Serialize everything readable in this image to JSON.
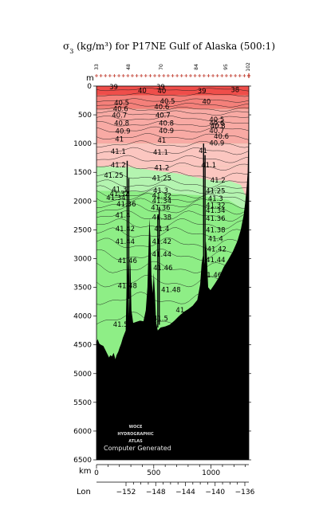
{
  "chart_data": {
    "type": "contour-section",
    "title_symbol": "σ",
    "title_sub": "3",
    "title_rest": " (kg/m³) for P17NE Gulf of Alaska (500:1)",
    "y_unit": "m",
    "x_unit": "km",
    "lon_label": "Lon",
    "ylim": [
      0,
      6500
    ],
    "xlim": [
      0,
      1330
    ],
    "y_ticks": [
      "0",
      "500",
      "1000",
      "1500",
      "2000",
      "2500",
      "3000",
      "3500",
      "4000",
      "4500",
      "5000",
      "5500",
      "6000",
      "6500"
    ],
    "x_ticks": [
      "0",
      "500",
      "1000"
    ],
    "lon_ticks": [
      "−152",
      "−148",
      "−144",
      "−140",
      "−136"
    ],
    "station_numbers": [
      "33",
      "48",
      "70",
      "84",
      "95",
      "102"
    ],
    "fill_colors": {
      "red_dark": "#ef4e4a",
      "red_mid": "#f4807a",
      "red_light": "#f8aaa4",
      "pink": "#fbc6c0",
      "green_light": "#b4f4b0",
      "green": "#8eee86",
      "bottom": "#000000"
    },
    "contour_labels": [
      {
        "text": "39",
        "x": 150,
        "y": 20
      },
      {
        "text": "40",
        "x": 400,
        "y": 80
      },
      {
        "text": "39",
        "x": 560,
        "y": 20
      },
      {
        "text": "40",
        "x": 570,
        "y": 90
      },
      {
        "text": "39",
        "x": 920,
        "y": 90
      },
      {
        "text": "40",
        "x": 960,
        "y": 280
      },
      {
        "text": "38",
        "x": 1210,
        "y": 70
      },
      {
        "text": "40.5",
        "x": 220,
        "y": 300
      },
      {
        "text": "40.5",
        "x": 620,
        "y": 270
      },
      {
        "text": "40.6",
        "x": 210,
        "y": 400
      },
      {
        "text": "40.6",
        "x": 570,
        "y": 370
      },
      {
        "text": "40.7",
        "x": 200,
        "y": 510
      },
      {
        "text": "40.7",
        "x": 580,
        "y": 510
      },
      {
        "text": "40.8",
        "x": 220,
        "y": 650
      },
      {
        "text": "40.8",
        "x": 610,
        "y": 650
      },
      {
        "text": "40.9",
        "x": 230,
        "y": 790
      },
      {
        "text": "40.9",
        "x": 610,
        "y": 780
      },
      {
        "text": "41",
        "x": 200,
        "y": 930
      },
      {
        "text": "41",
        "x": 570,
        "y": 950
      },
      {
        "text": "40.5",
        "x": 1050,
        "y": 590
      },
      {
        "text": "40.6",
        "x": 1050,
        "y": 650
      },
      {
        "text": "40.8",
        "x": 1060,
        "y": 700
      },
      {
        "text": "40.7",
        "x": 1050,
        "y": 780
      },
      {
        "text": "40.6",
        "x": 1090,
        "y": 880
      },
      {
        "text": "40.9",
        "x": 1050,
        "y": 1000
      },
      {
        "text": "41",
        "x": 930,
        "y": 1130
      },
      {
        "text": "41.1",
        "x": 190,
        "y": 1140
      },
      {
        "text": "41.1",
        "x": 560,
        "y": 1160
      },
      {
        "text": "41.1",
        "x": 980,
        "y": 1380
      },
      {
        "text": "41.2",
        "x": 190,
        "y": 1380
      },
      {
        "text": "41.2",
        "x": 570,
        "y": 1430
      },
      {
        "text": "41.2",
        "x": 1060,
        "y": 1640
      },
      {
        "text": "41.25",
        "x": 150,
        "y": 1560
      },
      {
        "text": "41.25",
        "x": 570,
        "y": 1610
      },
      {
        "text": "41.25",
        "x": 1040,
        "y": 1830
      },
      {
        "text": "41.3",
        "x": 200,
        "y": 1800
      },
      {
        "text": "41.3",
        "x": 560,
        "y": 1820
      },
      {
        "text": "41.3",
        "x": 1040,
        "y": 1960
      },
      {
        "text": "41.32",
        "x": 200,
        "y": 1880
      },
      {
        "text": "41.32",
        "x": 570,
        "y": 1910
      },
      {
        "text": "41.32",
        "x": 1040,
        "y": 2080
      },
      {
        "text": "41.34",
        "x": 170,
        "y": 1950
      },
      {
        "text": "41.34",
        "x": 570,
        "y": 2000
      },
      {
        "text": "41.34",
        "x": 1040,
        "y": 2170
      },
      {
        "text": "41.36",
        "x": 260,
        "y": 2060
      },
      {
        "text": "41.36",
        "x": 560,
        "y": 2120
      },
      {
        "text": "41.36",
        "x": 1040,
        "y": 2310
      },
      {
        "text": "41.38",
        "x": 570,
        "y": 2290
      },
      {
        "text": "41.38",
        "x": 1040,
        "y": 2510
      },
      {
        "text": "41.4",
        "x": 230,
        "y": 2250
      },
      {
        "text": "41.4",
        "x": 570,
        "y": 2490
      },
      {
        "text": "41.4",
        "x": 1040,
        "y": 2660
      },
      {
        "text": "41.42",
        "x": 250,
        "y": 2490
      },
      {
        "text": "41.42",
        "x": 570,
        "y": 2710
      },
      {
        "text": "41.42",
        "x": 1050,
        "y": 2840
      },
      {
        "text": "41.44",
        "x": 250,
        "y": 2710
      },
      {
        "text": "41.44",
        "x": 570,
        "y": 2930
      },
      {
        "text": "41.44",
        "x": 1040,
        "y": 3030
      },
      {
        "text": "41.46",
        "x": 270,
        "y": 3040
      },
      {
        "text": "41.46",
        "x": 580,
        "y": 3170
      },
      {
        "text": "41.46",
        "x": 1010,
        "y": 3290
      },
      {
        "text": "41.48",
        "x": 270,
        "y": 3480
      },
      {
        "text": "41.48",
        "x": 650,
        "y": 3550
      },
      {
        "text": "41",
        "x": 1120,
        "y": 3420
      },
      {
        "text": "41",
        "x": 730,
        "y": 3900
      },
      {
        "text": "41.5",
        "x": 210,
        "y": 4150
      },
      {
        "text": "41.5",
        "x": 560,
        "y": 4050
      }
    ],
    "woce_lines": [
      "WOCE",
      "HYDROGRAPHIC",
      "ATLAS"
    ],
    "footer_text": "Computer Generated"
  }
}
